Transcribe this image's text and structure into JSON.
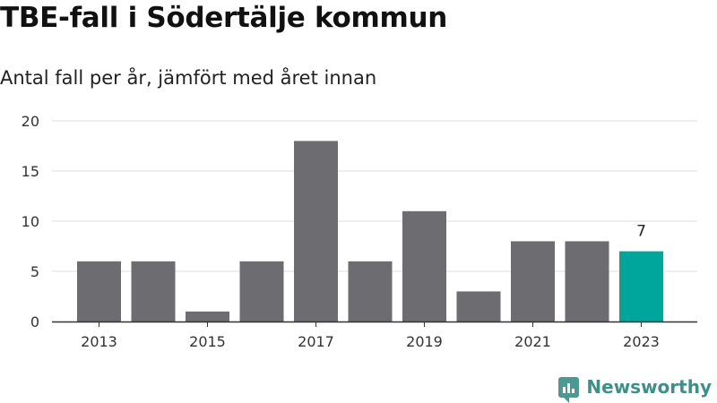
{
  "title": "TBE-fall i Södertälje kommun",
  "subtitle": "Antal fall per år, jämfört med året innan",
  "brand": {
    "name": "Newsworthy",
    "icon": "bar-chart-speech-bubble-icon",
    "color": "#3f8f89"
  },
  "colors": {
    "bar": "#6d6d71",
    "highlight": "#00a59b",
    "grid": "#dddddd",
    "axis": "#333333"
  },
  "chart_data": {
    "type": "bar",
    "title": "TBE-fall i Södertälje kommun",
    "subtitle": "Antal fall per år, jämfört med året innan",
    "categories": [
      "2013",
      "2014",
      "2015",
      "2016",
      "2017",
      "2018",
      "2019",
      "2020",
      "2021",
      "2022",
      "2023"
    ],
    "values": [
      6,
      6,
      1,
      6,
      18,
      6,
      11,
      3,
      8,
      8,
      7
    ],
    "highlight": "2023",
    "data_labels": [
      {
        "category": "2023",
        "label": "7"
      }
    ],
    "x_tick_labels": [
      "2013",
      "2015",
      "2017",
      "2019",
      "2021",
      "2023"
    ],
    "y_ticks": [
      0,
      5,
      10,
      15,
      20
    ],
    "ylim": [
      0,
      20
    ],
    "xlabel": "",
    "ylabel": "",
    "grid": true,
    "legend": "none"
  }
}
